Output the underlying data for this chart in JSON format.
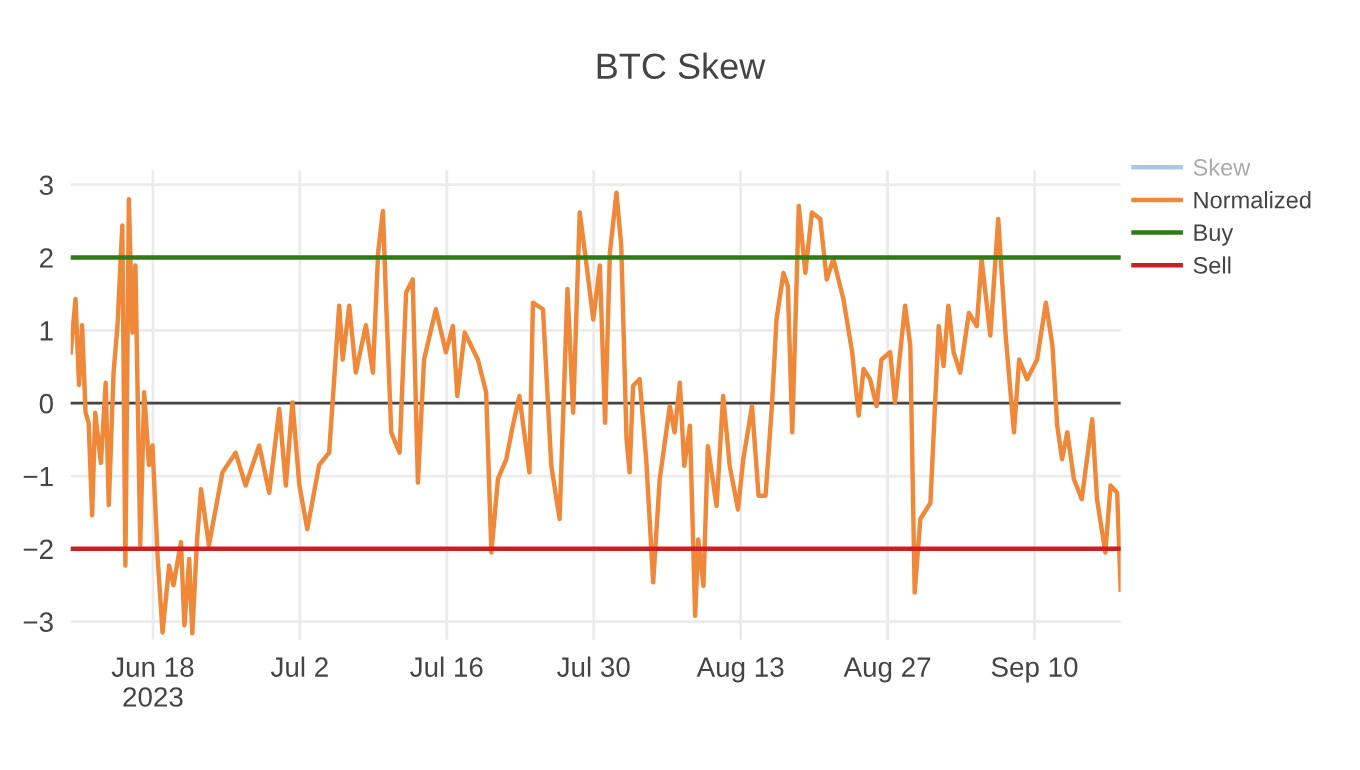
{
  "chart_data": {
    "type": "line",
    "title": "BTC Skew",
    "xlim": [
      "2023-06-10T04:00",
      "2023-09-18T05:00"
    ],
    "xticks": [
      {
        "value": "2023-06-18",
        "label": "Jun 18\n2023"
      },
      {
        "value": "2023-07-02",
        "label": "Jul 2"
      },
      {
        "value": "2023-07-16",
        "label": "Jul 16"
      },
      {
        "value": "2023-07-30",
        "label": "Jul 30"
      },
      {
        "value": "2023-08-13",
        "label": "Aug 13"
      },
      {
        "value": "2023-08-27",
        "label": "Aug 27"
      },
      {
        "value": "2023-09-10",
        "label": "Sep 10"
      }
    ],
    "ylim": [
      -3.25,
      3.2
    ],
    "yticks": [
      -3,
      -2,
      -1,
      0,
      1,
      2,
      3
    ],
    "grid": true,
    "legend": "top right",
    "ref_lines": [
      {
        "axis": "y",
        "value": 0,
        "color": "#444444"
      }
    ],
    "series": [
      {
        "name": "Skew",
        "color": "#9ab8e0"
      },
      {
        "name": "Normalized",
        "color": "#f0883a",
        "x": [
          "2023-06-10T04:00",
          "2023-06-10T15:00",
          "2023-06-10T23:00",
          "2023-06-11T06:00",
          "2023-06-11T14:00",
          "2023-06-11T21:00",
          "2023-06-12T05:00",
          "2023-06-12T12:00",
          "2023-06-13T01:00",
          "2023-06-13T12:00",
          "2023-06-13T19:00",
          "2023-06-14T06:00",
          "2023-06-14T15:00",
          "2023-06-15T02:00",
          "2023-06-15T09:00",
          "2023-06-15T17:00",
          "2023-06-16T01:00",
          "2023-06-16T08:00",
          "2023-06-16T19:00",
          "2023-06-17T04:00",
          "2023-06-17T15:00",
          "2023-06-17T23:00",
          "2023-06-18T11:00",
          "2023-06-18T22:00",
          "2023-06-19T13:00",
          "2023-06-19T23:00",
          "2023-06-20T16:00",
          "2023-06-21T00:00",
          "2023-06-21T11:00",
          "2023-06-21T18:00",
          "2023-06-22T05:00",
          "2023-06-22T14:00",
          "2023-06-23T08:00",
          "2023-06-24T15:00",
          "2023-06-25T21:00",
          "2023-06-26T20:00",
          "2023-06-28T03:00",
          "2023-06-29T02:00",
          "2023-06-30T01:00",
          "2023-06-30T16:00",
          "2023-07-01T07:00",
          "2023-07-01T23:00",
          "2023-07-02T17:00",
          "2023-07-03T20:00",
          "2023-07-04T19:00",
          "2023-07-05T18:00",
          "2023-07-06T02:00",
          "2023-07-06T17:00",
          "2023-07-07T08:00",
          "2023-07-08T07:00",
          "2023-07-08T23:00",
          "2023-07-09T11:00",
          "2023-07-09T22:00",
          "2023-07-10T05:00",
          "2023-07-10T17:00",
          "2023-07-11T12:00",
          "2023-07-12T03:00",
          "2023-07-12T18:00",
          "2023-07-13T06:00",
          "2023-07-13T20:00",
          "2023-07-14T23:00",
          "2023-07-15T22:00",
          "2023-07-16T14:00",
          "2023-07-17T00:00",
          "2023-07-17T17:00",
          "2023-07-18T23:00",
          "2023-07-19T18:00",
          "2023-07-20T06:00",
          "2023-07-20T21:00",
          "2023-07-21T16:00",
          "2023-07-22T07:00",
          "2023-07-22T22:00",
          "2023-07-23T21:00",
          "2023-07-24T05:00",
          "2023-07-25T04:00",
          "2023-07-25T23:00",
          "2023-07-26T18:00",
          "2023-07-27T12:00",
          "2023-07-28T01:00",
          "2023-07-28T16:00",
          "2023-07-29T04:00",
          "2023-07-29T23:00",
          "2023-07-30T14:00",
          "2023-07-31T02:00",
          "2023-07-31T13:00",
          "2023-08-01T04:00",
          "2023-08-01T15:00",
          "2023-08-02T03:00",
          "2023-08-02T10:00",
          "2023-08-02T18:00",
          "2023-08-03T09:00",
          "2023-08-04T00:00",
          "2023-08-04T16:00",
          "2023-08-05T07:00",
          "2023-08-06T06:00",
          "2023-08-06T17:00",
          "2023-08-07T05:00",
          "2023-08-07T15:00",
          "2023-08-08T04:00",
          "2023-08-08T16:00",
          "2023-08-08T23:00",
          "2023-08-09T11:00",
          "2023-08-09T21:00",
          "2023-08-10T17:00",
          "2023-08-11T08:00",
          "2023-08-11T23:00",
          "2023-08-12T18:00",
          "2023-08-13T06:00",
          "2023-08-14T02:00",
          "2023-08-14T17:00",
          "2023-08-15T09:00",
          "2023-08-16T00:00",
          "2023-08-16T10:00",
          "2023-08-17T02:00",
          "2023-08-17T12:00",
          "2023-08-17T22:00",
          "2023-08-18T13:00",
          "2023-08-19T04:00",
          "2023-08-19T19:00",
          "2023-08-20T14:00",
          "2023-08-21T05:00",
          "2023-08-21T20:00",
          "2023-08-22T19:00",
          "2023-08-23T15:00",
          "2023-08-24T06:00",
          "2023-08-24T17:00",
          "2023-08-25T08:00",
          "2023-08-25T23:00",
          "2023-08-26T10:00",
          "2023-08-27T06:00",
          "2023-08-27T17:00",
          "2023-08-28T16:00",
          "2023-08-29T04:00",
          "2023-08-29T14:00",
          "2023-08-30T03:00",
          "2023-08-31T02:00",
          "2023-08-31T21:00",
          "2023-09-01T08:00",
          "2023-09-01T19:00",
          "2023-09-02T07:00",
          "2023-09-02T22:00",
          "2023-09-03T18:00",
          "2023-09-04T12:00",
          "2023-09-04T23:00",
          "2023-09-05T19:00",
          "2023-09-06T13:00",
          "2023-09-07T06:00",
          "2023-09-08T01:00",
          "2023-09-08T13:00",
          "2023-09-09T07:00",
          "2023-09-10T06:00",
          "2023-09-11T02:00",
          "2023-09-11T17:00",
          "2023-09-12T04:00",
          "2023-09-12T15:00",
          "2023-09-13T03:00",
          "2023-09-13T18:00",
          "2023-09-14T12:00",
          "2023-09-15T12:00",
          "2023-09-15T23:00",
          "2023-09-16T18:00",
          "2023-09-17T06:00",
          "2023-09-17T21:00",
          "2023-09-18T05:00"
        ],
        "values": [
          0.7,
          1.43,
          0.25,
          1.07,
          -0.13,
          -0.27,
          -1.54,
          -0.13,
          -0.82,
          0.28,
          -1.4,
          0.42,
          1.07,
          2.44,
          -2.23,
          2.8,
          0.97,
          1.89,
          -1.95,
          0.15,
          -0.85,
          -0.58,
          -2.14,
          -3.15,
          -2.23,
          -2.5,
          -1.91,
          -3.05,
          -2.14,
          -3.16,
          -1.87,
          -1.18,
          -1.95,
          -0.95,
          -0.68,
          -1.13,
          -0.58,
          -1.23,
          -0.08,
          -1.13,
          0.01,
          -1.13,
          -1.73,
          -0.85,
          -0.68,
          1.34,
          0.6,
          1.34,
          0.42,
          1.07,
          0.42,
          2.07,
          2.64,
          1.43,
          -0.4,
          -0.68,
          1.52,
          1.7,
          -1.09,
          0.6,
          1.29,
          0.7,
          1.06,
          0.1,
          0.97,
          0.6,
          0.15,
          -2.05,
          -1.04,
          -0.77,
          -0.31,
          0.1,
          -0.95,
          1.38,
          1.29,
          -0.86,
          -1.59,
          1.57,
          -0.13,
          2.62,
          2.07,
          1.15,
          1.89,
          -0.27,
          2.07,
          2.89,
          2.16,
          -0.49,
          -0.95,
          0.24,
          0.33,
          -0.77,
          -2.46,
          -1.04,
          -0.04,
          -0.4,
          0.28,
          -0.86,
          -0.31,
          -2.92,
          -1.87,
          -2.51,
          -0.59,
          -1.41,
          0.1,
          -0.86,
          -1.46,
          -0.77,
          -0.04,
          -1.27,
          -1.27,
          0.01,
          1.15,
          1.79,
          1.61,
          -0.4,
          2.71,
          1.79,
          2.62,
          2.53,
          1.7,
          1.98,
          1.43,
          0.7,
          -0.17,
          0.47,
          0.33,
          -0.04,
          0.6,
          0.7,
          0.01,
          1.34,
          0.79,
          -2.6,
          -1.59,
          -1.37,
          1.06,
          0.51,
          1.34,
          0.7,
          0.42,
          1.24,
          1.06,
          1.98,
          0.93,
          2.53,
          0.93,
          -0.4,
          0.6,
          0.33,
          0.6,
          1.38,
          0.79,
          -0.31,
          -0.77,
          -0.4,
          -1.04,
          -1.32,
          -0.22,
          -1.32,
          -2.05,
          -1.13,
          -1.23,
          -2.56
        ]
      },
      {
        "name": "Buy",
        "color": "#2e7d14",
        "x": [
          "2023-06-10T04:00",
          "2023-09-18T05:00"
        ],
        "values": [
          2,
          2
        ]
      },
      {
        "name": "Sell",
        "color": "#cc2020",
        "x": [
          "2023-06-10T04:00",
          "2023-09-18T05:00"
        ],
        "values": [
          -2,
          -2
        ]
      }
    ]
  }
}
